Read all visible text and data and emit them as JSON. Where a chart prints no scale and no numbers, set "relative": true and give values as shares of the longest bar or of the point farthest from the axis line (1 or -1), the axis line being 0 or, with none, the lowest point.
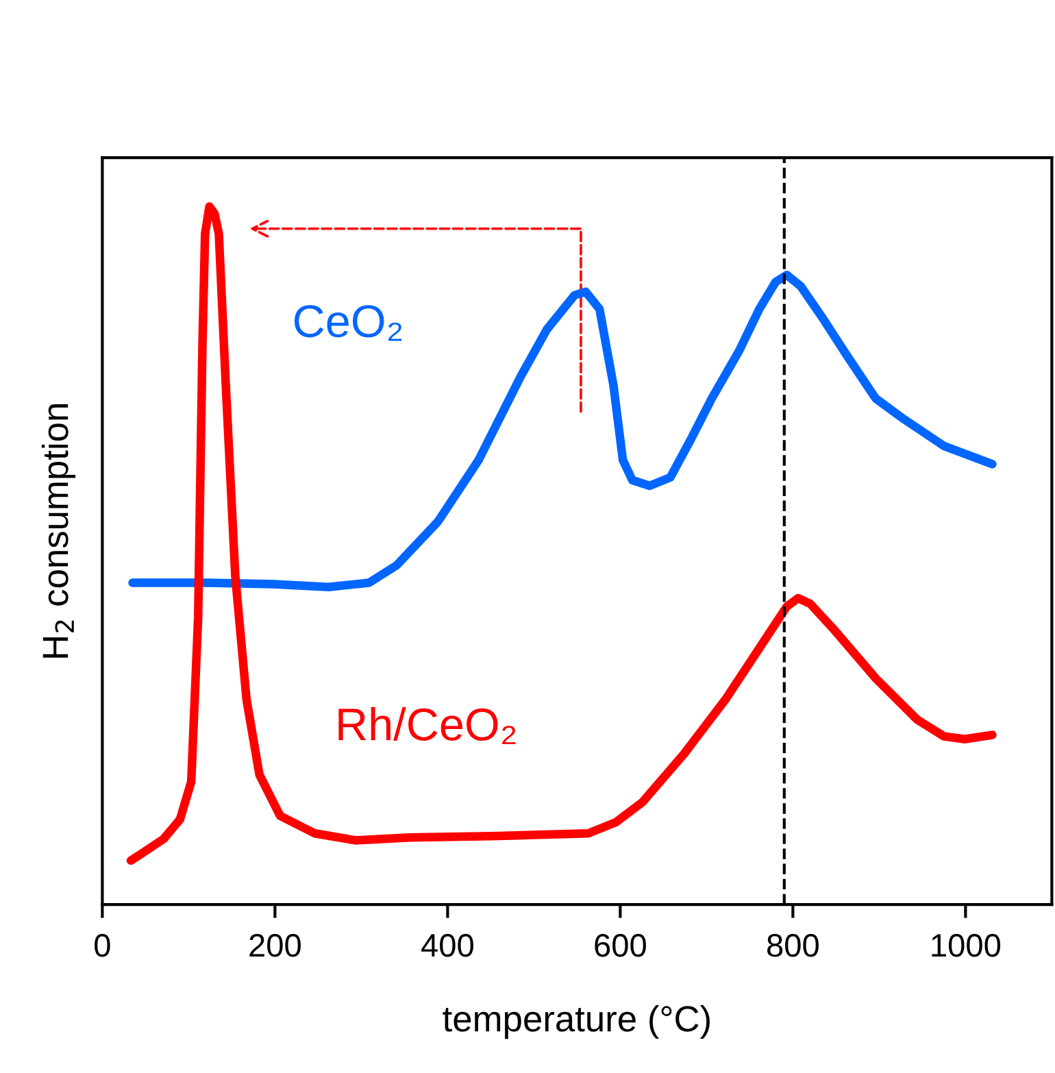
{
  "chart_data": {
    "type": "line",
    "relative": true,
    "xlabel": "temperature (°C)",
    "ylabel": "H$_{2}$ consumption",
    "xlim": [
      0,
      1100
    ],
    "xticks": [
      0,
      200,
      400,
      600,
      800,
      1000
    ],
    "grid": false,
    "legend": false,
    "marker": "none",
    "line_style": "solid",
    "series": [
      {
        "name": "CeO₂",
        "color": "#0066ff",
        "x": [
          35,
          119,
          198,
          262,
          309,
          341,
          389,
          436,
          484,
          515,
          547,
          560,
          576,
          592,
          603,
          614,
          634,
          658,
          682,
          706,
          738,
          761,
          780,
          793,
          809,
          833,
          864,
          896,
          928,
          975,
          1031
        ],
        "values": [
          0.461,
          0.461,
          0.459,
          0.455,
          0.461,
          0.486,
          0.549,
          0.637,
          0.755,
          0.824,
          0.873,
          0.878,
          0.853,
          0.745,
          0.637,
          0.608,
          0.6,
          0.612,
          0.667,
          0.725,
          0.794,
          0.853,
          0.892,
          0.902,
          0.886,
          0.843,
          0.784,
          0.725,
          0.696,
          0.657,
          0.631
        ]
      },
      {
        "name": "Rh/CeO₂",
        "color": "#ff0000",
        "x": [
          33,
          48,
          71,
          90,
          103,
          111,
          116,
          119,
          124,
          130,
          135,
          143,
          154,
          167,
          182,
          206,
          246,
          293,
          357,
          452,
          563,
          595,
          626,
          674,
          722,
          769,
          793,
          806,
          820,
          849,
          896,
          944,
          975,
          999,
          1031
        ],
        "values": [
          0.063,
          0.075,
          0.094,
          0.122,
          0.176,
          0.412,
          0.804,
          0.961,
          1,
          0.99,
          0.961,
          0.745,
          0.471,
          0.294,
          0.186,
          0.127,
          0.102,
          0.092,
          0.096,
          0.098,
          0.102,
          0.118,
          0.147,
          0.216,
          0.294,
          0.382,
          0.427,
          0.439,
          0.431,
          0.392,
          0.324,
          0.265,
          0.241,
          0.237,
          0.243
        ]
      }
    ],
    "ref_lines": [
      {
        "axis": "x",
        "value": 790,
        "color": "#000000",
        "line_style": "dashed"
      }
    ]
  }
}
